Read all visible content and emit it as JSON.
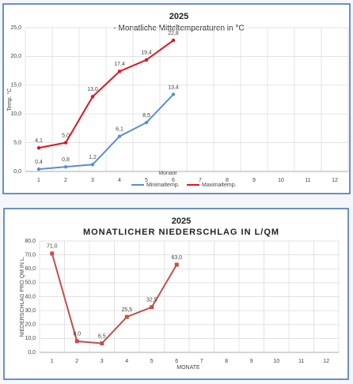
{
  "chart_data": [
    {
      "type": "line",
      "title": "2025",
      "subtitle": "- Monatliche Mitteltemperaturen in °C",
      "y_label": "Temp. °C",
      "x_label": "Monate",
      "categories": [
        "1",
        "2",
        "3",
        "4",
        "5",
        "6",
        "7",
        "8",
        "9",
        "10",
        "11",
        "12"
      ],
      "series": [
        {
          "name": "Minimaltemp.",
          "color": "#5b8fd0",
          "marker": "circle",
          "values": [
            0.4,
            0.8,
            1.2,
            6.1,
            8.5,
            13.4,
            null,
            null,
            null,
            null,
            null,
            null
          ],
          "value_labels": [
            "0,4",
            "0,8",
            "1,2",
            "6,1",
            "8,5",
            "13,4",
            null,
            null,
            null,
            null,
            null,
            null
          ]
        },
        {
          "name": "Maximaltemp.",
          "color": "#e0141e",
          "marker": "circle",
          "values": [
            4.1,
            5.0,
            13.0,
            17.4,
            19.4,
            22.8,
            null,
            null,
            null,
            null,
            null,
            null
          ],
          "value_labels": [
            "4,1",
            "5,0",
            "13,0",
            "17,4",
            "19,4",
            "22,8",
            null,
            null,
            null,
            null,
            null,
            null
          ]
        }
      ],
      "ylim": [
        0,
        25
      ],
      "yticks": [
        {
          "value": 0,
          "label": "0,0"
        },
        {
          "value": 5,
          "label": "5,0"
        },
        {
          "value": 10,
          "label": "10,0"
        },
        {
          "value": 15,
          "label": "15,0"
        },
        {
          "value": 20,
          "label": "20,0"
        },
        {
          "value": 25,
          "label": "25,0"
        }
      ],
      "grid": true,
      "legend": "bottom"
    },
    {
      "type": "line",
      "title": "2025",
      "subtitle": "MONATLICHER NIEDERSCHLAG IN L/QM",
      "y_label": "NIEDERSCHLAG PRO QM IN L.",
      "x_label": "MONATE",
      "categories": [
        "1",
        "2",
        "3",
        "4",
        "5",
        "6",
        "7",
        "8",
        "9",
        "10",
        "11",
        "12"
      ],
      "series": [
        {
          "color": "#c0504d",
          "marker": "square",
          "values": [
            71.0,
            8.0,
            6.5,
            25.5,
            32.5,
            63.0,
            null,
            null,
            null,
            null,
            null,
            null
          ],
          "value_labels": [
            "71,0",
            "8,0",
            "6,5",
            "25,5",
            "32,5",
            "63,0",
            null,
            null,
            null,
            null,
            null,
            null
          ]
        }
      ],
      "ylim": [
        0,
        80
      ],
      "yticks": [
        {
          "value": 0,
          "label": "0,0"
        },
        {
          "value": 10,
          "label": "10,0"
        },
        {
          "value": 20,
          "label": "20,0"
        },
        {
          "value": 30,
          "label": "30,0"
        },
        {
          "value": 40,
          "label": "40,0"
        },
        {
          "value": 50,
          "label": "50,0"
        },
        {
          "value": 60,
          "label": "60,0"
        },
        {
          "value": 70,
          "label": "70,0"
        },
        {
          "value": 80,
          "label": "80,0"
        }
      ],
      "grid": true
    }
  ]
}
